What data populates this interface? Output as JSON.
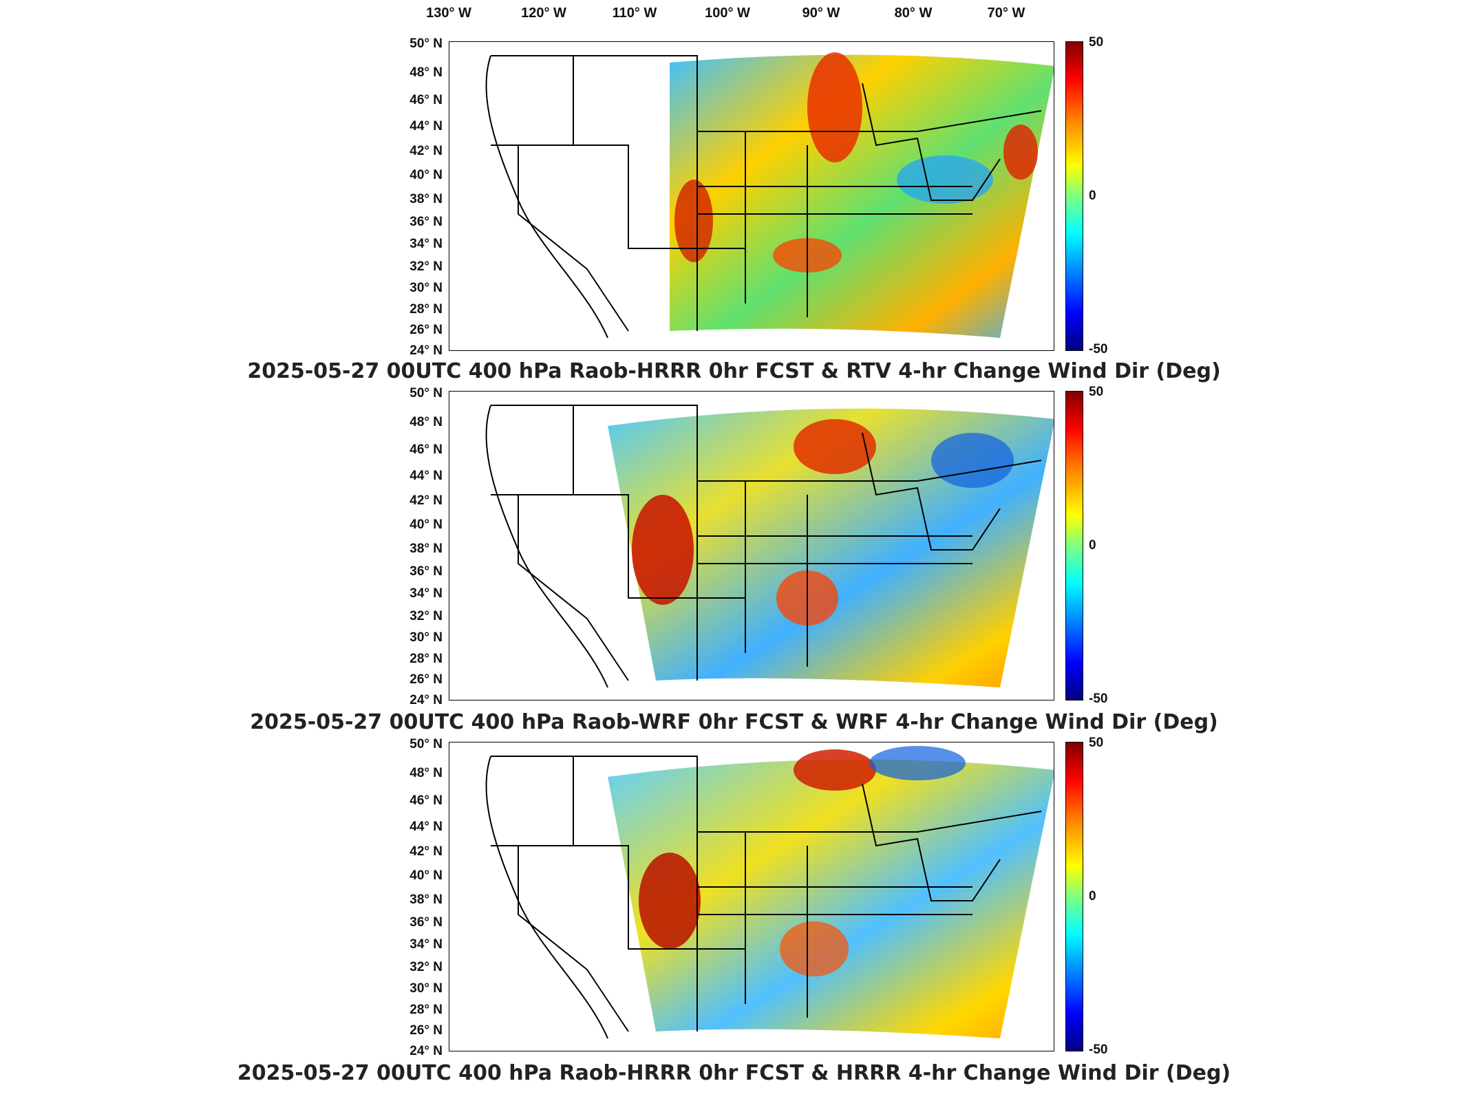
{
  "lon_ticks": [
    "130° W",
    "120° W",
    "110° W",
    "100° W",
    "90° W",
    "80° W",
    "70° W"
  ],
  "lat_ticks": [
    "50° N",
    "48° N",
    "46° N",
    "44° N",
    "42° N",
    "40° N",
    "38° N",
    "36° N",
    "34° N",
    "32° N",
    "30° N",
    "28° N",
    "26° N",
    "24° N"
  ],
  "colorbar": {
    "max_label": "50",
    "mid_label": "0",
    "min_label": "-50",
    "colormap": "jet"
  },
  "panels": [
    {
      "title": "2025-05-27 00UTC 400 hPa Raob-HRRR 0hr FCST & RTV 4-hr Change Wind Dir (Deg)"
    },
    {
      "title": "2025-05-27 00UTC 400 hPa Raob-WRF 0hr FCST & WRF 4-hr Change Wind Dir (Deg)"
    },
    {
      "title": "2025-05-27 00UTC 400 hPa Raob-HRRR 0hr FCST & HRRR 4-hr Change Wind Dir (Deg)"
    }
  ],
  "colors": {
    "border": "#000000",
    "field_mid": "#7fe07f",
    "warm": "#ff3000",
    "cool": "#20a0ff"
  }
}
